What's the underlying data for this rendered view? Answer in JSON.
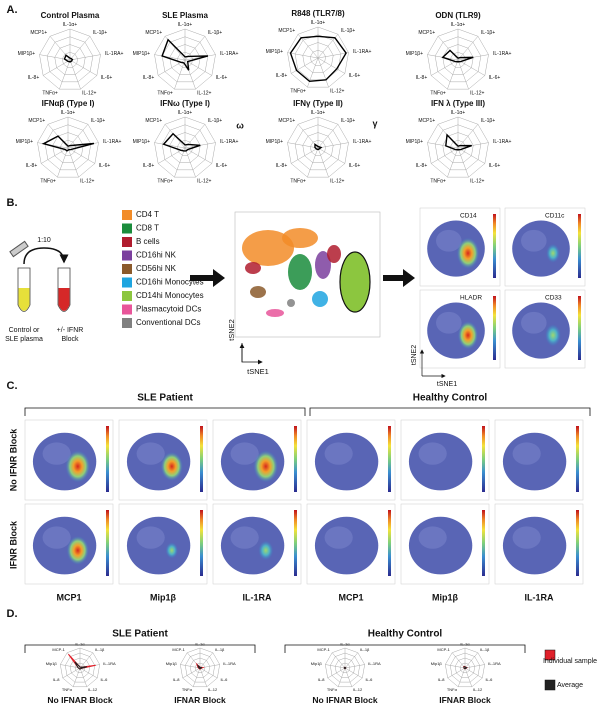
{
  "panel_a": {
    "label": "A.",
    "annotations": [
      "ω",
      "γ"
    ]
  },
  "chart_data": [
    {
      "type": "radar",
      "title": "Control Plasma",
      "axes": [
        "IL-1α+",
        "IL-1β+",
        "IL-1RA+",
        "IL-6+",
        "IL-12+",
        "TNFα+",
        "IL-8+",
        "MIP1β+",
        "MCP1+"
      ],
      "rlim": [
        0,
        100
      ],
      "series": [
        {
          "color": "#000000",
          "values": [
            6,
            6,
            8,
            6,
            6,
            6,
            8,
            18,
            20
          ]
        }
      ]
    },
    {
      "type": "radar",
      "title": "SLE Plasma",
      "axes": [
        "IL-1α+",
        "IL-1β+",
        "IL-1RA+",
        "IL-6+",
        "IL-12+",
        "TNFα+",
        "IL-8+",
        "MIP1β+",
        "MCP1+"
      ],
      "rlim": [
        0,
        100
      ],
      "series": [
        {
          "color": "#000000",
          "values": [
            10,
            15,
            75,
            10,
            35,
            10,
            15,
            75,
            85
          ]
        }
      ]
    },
    {
      "type": "radar",
      "title": "R848 (TLR7/8)",
      "axes": [
        "IL-1α+",
        "IL-1β+",
        "IL-1RA+",
        "IL-6+",
        "IL-12+",
        "TNFα+",
        "IL-8+",
        "MIP1β+",
        "MCP1+"
      ],
      "rlim": [
        0,
        100
      ],
      "series": [
        {
          "color": "#000000",
          "values": [
            70,
            85,
            92,
            70,
            75,
            80,
            80,
            90,
            85
          ]
        }
      ]
    },
    {
      "type": "radar",
      "title": "ODN (TLR9)",
      "axes": [
        "IL-1α+",
        "IL-1β+",
        "IL-1RA+",
        "IL-6+",
        "IL-12+",
        "TNFα+",
        "IL-8+",
        "MIP1β+",
        "MCP1+"
      ],
      "rlim": [
        0,
        100
      ],
      "series": [
        {
          "color": "#000000",
          "values": [
            6,
            10,
            50,
            10,
            6,
            6,
            10,
            50,
            40
          ]
        }
      ]
    },
    {
      "type": "radar",
      "title": "IFNαβ (Type I)",
      "axes": [
        "IL-1α+",
        "IL-1β+",
        "IL-1RA+",
        "IL-6+",
        "IL-12+",
        "TNFα+",
        "IL-8+",
        "MIP1β+",
        "MCP1+"
      ],
      "rlim": [
        0,
        100
      ],
      "series": [
        {
          "color": "#000000",
          "values": [
            6,
            10,
            85,
            10,
            6,
            10,
            10,
            80,
            50
          ]
        }
      ]
    },
    {
      "type": "radar",
      "title": "IFNω (Type I)",
      "axes": [
        "IL-1α+",
        "IL-1β+",
        "IL-1RA+",
        "IL-6+",
        "IL-12+",
        "TNFα+",
        "IL-8+",
        "MIP1β+",
        "MCP1+"
      ],
      "rlim": [
        0,
        100
      ],
      "series": [
        {
          "color": "#000000",
          "values": [
            10,
            15,
            50,
            10,
            10,
            10,
            15,
            70,
            60
          ]
        }
      ]
    },
    {
      "type": "radar",
      "title": "IFNγ (Type II)",
      "axes": [
        "IL-1α+",
        "IL-1β+",
        "IL-1RA+",
        "IL-6+",
        "IL-12+",
        "TNFα+",
        "IL-8+",
        "MIP1β+",
        "MCP1+"
      ],
      "rlim": [
        0,
        100
      ],
      "series": [
        {
          "color": "#000000",
          "values": [
            5,
            5,
            10,
            5,
            5,
            5,
            6,
            10,
            15
          ]
        }
      ]
    },
    {
      "type": "radar",
      "title": "IFN λ (Type III)",
      "axes": [
        "IL-1α+",
        "IL-1β+",
        "IL-1RA+",
        "IL-6+",
        "IL-12+",
        "TNFα+",
        "IL-8+",
        "MIP1β+",
        "MCP1+"
      ],
      "rlim": [
        0,
        100
      ],
      "series": [
        {
          "color": "#000000",
          "values": [
            6,
            10,
            45,
            10,
            6,
            6,
            10,
            40,
            55
          ]
        }
      ]
    },
    {
      "type": "radar",
      "title": "No IFNAR Block",
      "axes": [
        "IL-1α",
        "IL-1β",
        "IL-1RA",
        "IL-6",
        "IL-12",
        "TNFα",
        "IL-8",
        "Mip1β",
        "MCP-1"
      ],
      "rlim": [
        0,
        100
      ],
      "series": [
        {
          "name": "Individual sample",
          "color": "#e0202a",
          "values": [
            5,
            5,
            80,
            5,
            5,
            5,
            5,
            10,
            90
          ]
        },
        {
          "name": "Average",
          "color": "#222222",
          "values": [
            5,
            5,
            35,
            5,
            5,
            5,
            5,
            10,
            40
          ]
        }
      ]
    },
    {
      "type": "radar",
      "title": "IFNAR Block",
      "axes": [
        "IL-1α",
        "IL-1β",
        "IL-1RA",
        "IL-6",
        "IL-12",
        "TNFα",
        "IL-8",
        "Mip1β",
        "MCP-1"
      ],
      "rlim": [
        0,
        100
      ],
      "series": [
        {
          "color": "#e0202a",
          "values": [
            5,
            5,
            15,
            5,
            5,
            5,
            5,
            10,
            25
          ]
        },
        {
          "color": "#222222",
          "values": [
            3,
            3,
            10,
            3,
            3,
            3,
            3,
            6,
            15
          ]
        }
      ]
    },
    {
      "type": "radar",
      "title": "No IFNAR Block",
      "axes": [
        "IL-1α",
        "IL-1β",
        "IL-1RA",
        "IL-6",
        "IL-12",
        "TNFα",
        "IL-8",
        "Mip1β",
        "MCP-1"
      ],
      "rlim": [
        0,
        100
      ],
      "series": [
        {
          "color": "#e0202a",
          "values": [
            3,
            3,
            4,
            3,
            3,
            3,
            3,
            4,
            4
          ]
        },
        {
          "color": "#222222",
          "values": [
            3,
            3,
            4,
            3,
            3,
            3,
            3,
            4,
            4
          ]
        }
      ]
    },
    {
      "type": "radar",
      "title": "IFNAR Block",
      "axes": [
        "IL-1α",
        "IL-1β",
        "IL-1RA",
        "IL-6",
        "IL-12",
        "TNFα",
        "IL-8",
        "Mip1β",
        "MCP-1"
      ],
      "rlim": [
        0,
        100
      ],
      "series": [
        {
          "color": "#e0202a",
          "values": [
            8,
            5,
            10,
            5,
            4,
            4,
            5,
            6,
            10
          ]
        },
        {
          "color": "#222222",
          "values": [
            6,
            4,
            8,
            4,
            3,
            3,
            4,
            5,
            8
          ]
        }
      ]
    }
  ],
  "panel_b": {
    "label": "B.",
    "dilution": "1:10",
    "tube_left": [
      "Control or",
      "SLE plasma"
    ],
    "tube_right": [
      "+/- IFNR",
      "Block"
    ],
    "cell_types": [
      {
        "name": "CD4 T",
        "color": "#f28c28"
      },
      {
        "name": "CD8 T",
        "color": "#1a8c3c"
      },
      {
        "name": "B cells",
        "color": "#b01c2e"
      },
      {
        "name": "CD16hi NK",
        "color": "#7b3f9e"
      },
      {
        "name": "CD56hi NK",
        "color": "#8b5a2b"
      },
      {
        "name": "CD16hi Monocytes",
        "color": "#1ea5e0"
      },
      {
        "name": "CD14hi Monocytes",
        "color": "#8cc63f"
      },
      {
        "name": "Plasmacytoid DCs",
        "color": "#e8559a"
      },
      {
        "name": "Conventional DCs",
        "color": "#808080"
      }
    ],
    "tsne_axes": {
      "y": "tSNE2",
      "x": "tSNE1"
    },
    "markers": [
      "CD14",
      "CD11c",
      "HLADR",
      "CD33"
    ]
  },
  "panel_c": {
    "label": "C.",
    "groups": [
      "SLE Patient",
      "Healthy Control"
    ],
    "rows": [
      "No IFNR Block",
      "IFNR Block"
    ],
    "columns": [
      "MCP1",
      "Mip1β",
      "IL-1RA"
    ]
  },
  "panel_d": {
    "label": "D.",
    "groups": [
      "SLE Patient",
      "Healthy Control"
    ]
  }
}
